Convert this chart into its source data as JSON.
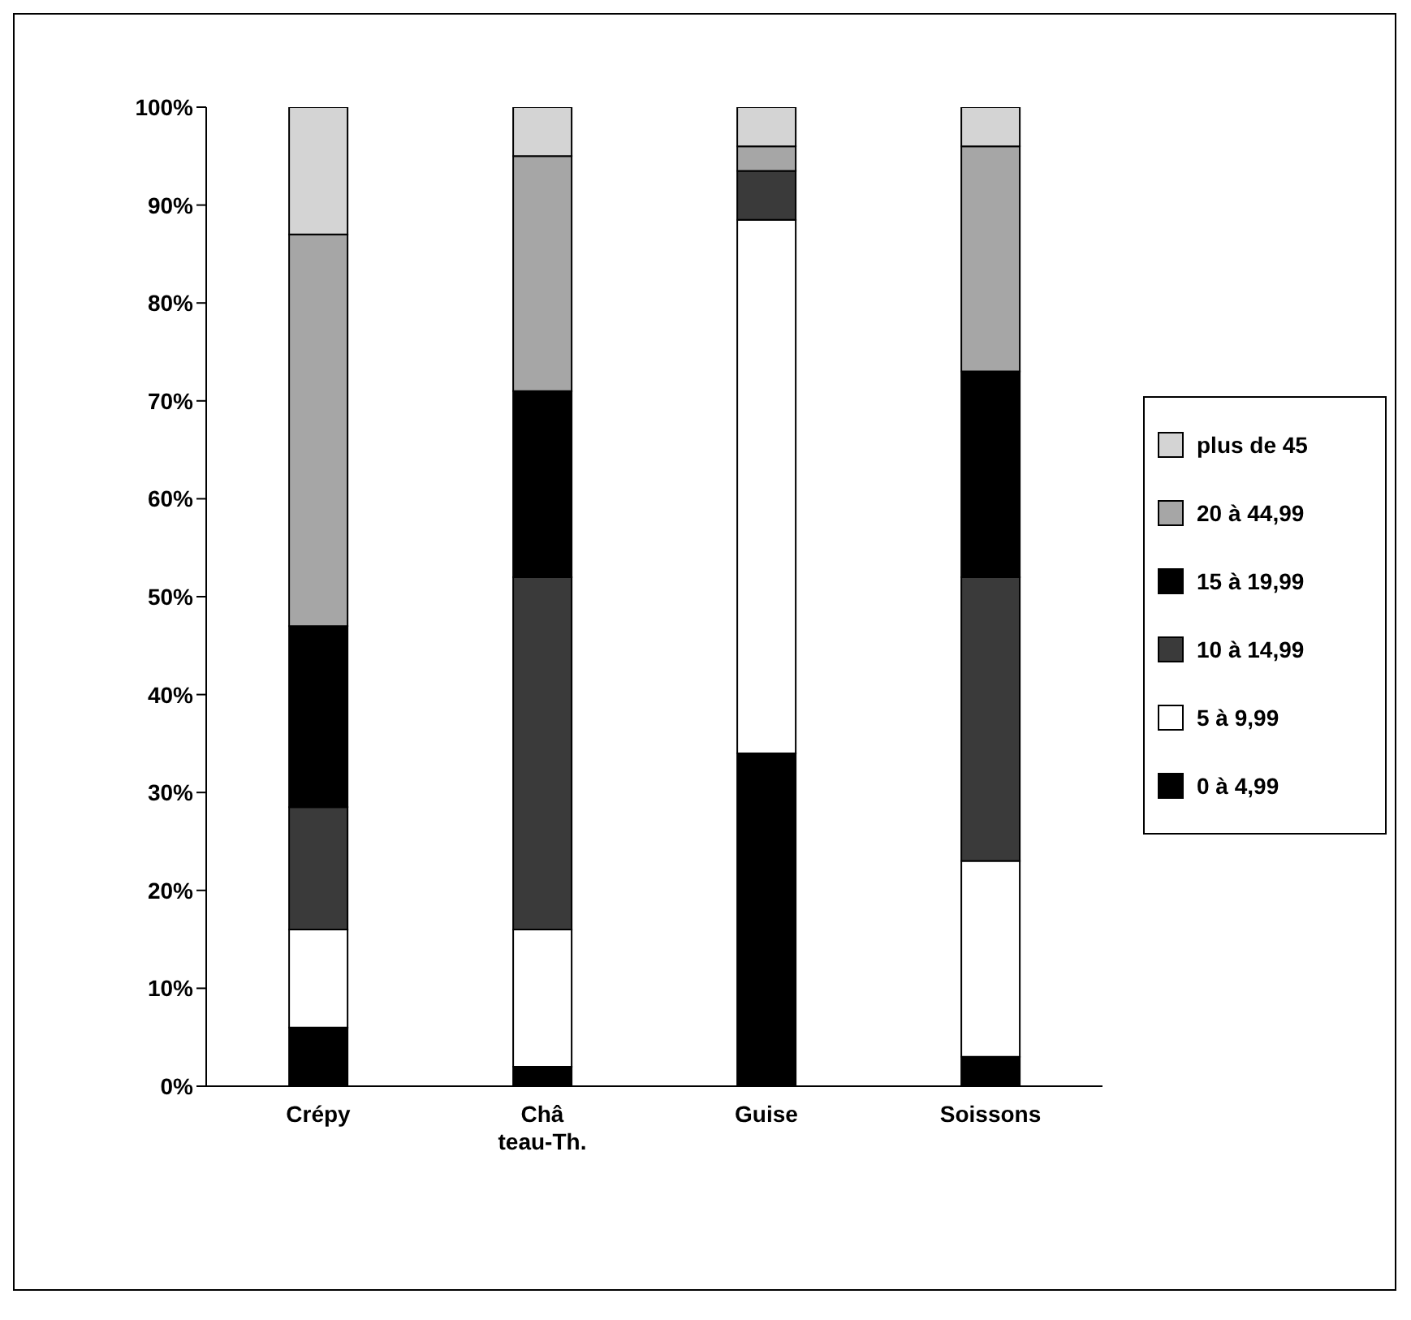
{
  "chart_data": {
    "type": "bar",
    "stacked": true,
    "categories": [
      "Crépy",
      "Châ\nteau-Th.",
      "Guise",
      "Soissons"
    ],
    "series": [
      {
        "name": "0 à 4,99",
        "color": "#000000",
        "values": [
          6,
          2,
          34,
          3
        ]
      },
      {
        "name": "5 à 9,99",
        "color": "#ffffff",
        "values": [
          10,
          14,
          54.5,
          20
        ]
      },
      {
        "name": "10 à 14,99",
        "color": "#3a3a3a",
        "values": [
          12.5,
          36,
          5,
          29
        ]
      },
      {
        "name": "15 à 19,99",
        "color": "#000000",
        "values": [
          18.5,
          19,
          0,
          21
        ]
      },
      {
        "name": "20 à 44,99",
        "color": "#a6a6a6",
        "values": [
          40,
          24,
          2.5,
          23
        ]
      },
      {
        "name": "plus de 45",
        "color": "#d4d4d4",
        "values": [
          13,
          5,
          4,
          4
        ]
      }
    ],
    "ylim": [
      0,
      100
    ],
    "yticks": [
      {
        "value": 0,
        "label": "0%"
      },
      {
        "value": 10,
        "label": "10%"
      },
      {
        "value": 20,
        "label": "20%"
      },
      {
        "value": 30,
        "label": "30%"
      },
      {
        "value": 40,
        "label": "40%"
      },
      {
        "value": 50,
        "label": "50%"
      },
      {
        "value": 60,
        "label": "60%"
      },
      {
        "value": 70,
        "label": "70%"
      },
      {
        "value": 80,
        "label": "80%"
      },
      {
        "value": 90,
        "label": "90%"
      },
      {
        "value": 100,
        "label": "100%"
      }
    ],
    "grid": false,
    "legend": "right"
  }
}
